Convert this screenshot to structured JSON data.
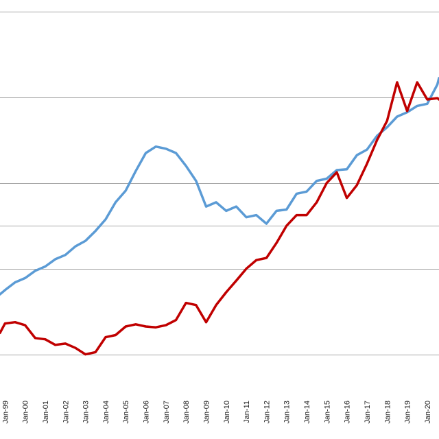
{
  "chart_data": {
    "type": "line",
    "title": "",
    "xlabel": "",
    "ylabel": "",
    "x_tick_labels": [
      "Jan-99",
      "Jan-00",
      "Jan-01",
      "Jan-02",
      "Jan-03",
      "Jan-04",
      "Jan-05",
      "Jan-06",
      "Jan-07",
      "Jan-08",
      "Jan-09",
      "Jan-10",
      "Jan-11",
      "Jan-12",
      "Jan-13",
      "Jan-14",
      "Jan-15",
      "Jan-16",
      "Jan-17",
      "Jan-18",
      "Jan-19",
      "Jan-20"
    ],
    "xlim": [
      "1998-10",
      "2020-08"
    ],
    "ylim": [
      0,
      9
    ],
    "gridlines_y": [
      1,
      3,
      4,
      5,
      7,
      9
    ],
    "grid": true,
    "legend": "none",
    "series": [
      {
        "color": "#5b9bd5",
        "points": [
          [
            "1998-10",
            2.4
          ],
          [
            "1999-01",
            2.5
          ],
          [
            "1999-07",
            2.68
          ],
          [
            "2000-01",
            2.78
          ],
          [
            "2000-07",
            2.95
          ],
          [
            "2001-01",
            3.05
          ],
          [
            "2001-07",
            3.22
          ],
          [
            "2002-01",
            3.32
          ],
          [
            "2002-07",
            3.52
          ],
          [
            "2003-01",
            3.65
          ],
          [
            "2003-07",
            3.88
          ],
          [
            "2004-01",
            4.15
          ],
          [
            "2004-07",
            4.55
          ],
          [
            "2005-01",
            4.82
          ],
          [
            "2005-07",
            5.28
          ],
          [
            "2006-01",
            5.7
          ],
          [
            "2006-07",
            5.85
          ],
          [
            "2007-01",
            5.8
          ],
          [
            "2007-07",
            5.7
          ],
          [
            "2008-01",
            5.4
          ],
          [
            "2008-07",
            5.05
          ],
          [
            "2009-01",
            4.45
          ],
          [
            "2009-07",
            4.55
          ],
          [
            "2010-01",
            4.35
          ],
          [
            "2010-07",
            4.45
          ],
          [
            "2011-01",
            4.2
          ],
          [
            "2011-07",
            4.25
          ],
          [
            "2012-01",
            4.05
          ],
          [
            "2012-07",
            4.35
          ],
          [
            "2013-01",
            4.38
          ],
          [
            "2013-07",
            4.75
          ],
          [
            "2014-01",
            4.8
          ],
          [
            "2014-07",
            5.05
          ],
          [
            "2015-01",
            5.1
          ],
          [
            "2015-07",
            5.3
          ],
          [
            "2016-01",
            5.32
          ],
          [
            "2016-07",
            5.65
          ],
          [
            "2017-01",
            5.78
          ],
          [
            "2017-07",
            6.1
          ],
          [
            "2018-01",
            6.3
          ],
          [
            "2018-07",
            6.55
          ],
          [
            "2019-01",
            6.65
          ],
          [
            "2019-07",
            6.8
          ],
          [
            "2020-01",
            6.85
          ],
          [
            "2020-07",
            7.3
          ],
          [
            "2020-08",
            7.45
          ]
        ]
      },
      {
        "color": "#c00000",
        "points": [
          [
            "1998-10",
            1.5
          ],
          [
            "1999-01",
            1.72
          ],
          [
            "1999-07",
            1.75
          ],
          [
            "2000-01",
            1.68
          ],
          [
            "2000-07",
            1.38
          ],
          [
            "2001-01",
            1.35
          ],
          [
            "2001-07",
            1.22
          ],
          [
            "2002-01",
            1.25
          ],
          [
            "2002-07",
            1.15
          ],
          [
            "2003-01",
            1.0
          ],
          [
            "2003-07",
            1.05
          ],
          [
            "2004-01",
            1.4
          ],
          [
            "2004-07",
            1.45
          ],
          [
            "2005-01",
            1.65
          ],
          [
            "2005-07",
            1.7
          ],
          [
            "2006-01",
            1.65
          ],
          [
            "2006-07",
            1.63
          ],
          [
            "2007-01",
            1.68
          ],
          [
            "2007-07",
            1.8
          ],
          [
            "2008-01",
            2.2
          ],
          [
            "2008-07",
            2.15
          ],
          [
            "2009-01",
            1.75
          ],
          [
            "2009-07",
            2.15
          ],
          [
            "2010-01",
            2.45
          ],
          [
            "2010-07",
            2.72
          ],
          [
            "2011-01",
            3.0
          ],
          [
            "2011-07",
            3.2
          ],
          [
            "2012-01",
            3.25
          ],
          [
            "2012-07",
            3.6
          ],
          [
            "2013-01",
            4.0
          ],
          [
            "2013-07",
            4.25
          ],
          [
            "2014-01",
            4.25
          ],
          [
            "2014-07",
            4.55
          ],
          [
            "2015-01",
            5.0
          ],
          [
            "2015-07",
            5.25
          ],
          [
            "2016-01",
            4.65
          ],
          [
            "2016-07",
            4.95
          ],
          [
            "2017-01",
            5.45
          ],
          [
            "2017-07",
            6.0
          ],
          [
            "2018-01",
            6.45
          ],
          [
            "2018-07",
            7.35
          ],
          [
            "2019-01",
            6.68
          ],
          [
            "2019-07",
            7.35
          ],
          [
            "2020-01",
            6.95
          ],
          [
            "2020-07",
            6.98
          ],
          [
            "2020-08",
            6.95
          ]
        ]
      }
    ]
  }
}
